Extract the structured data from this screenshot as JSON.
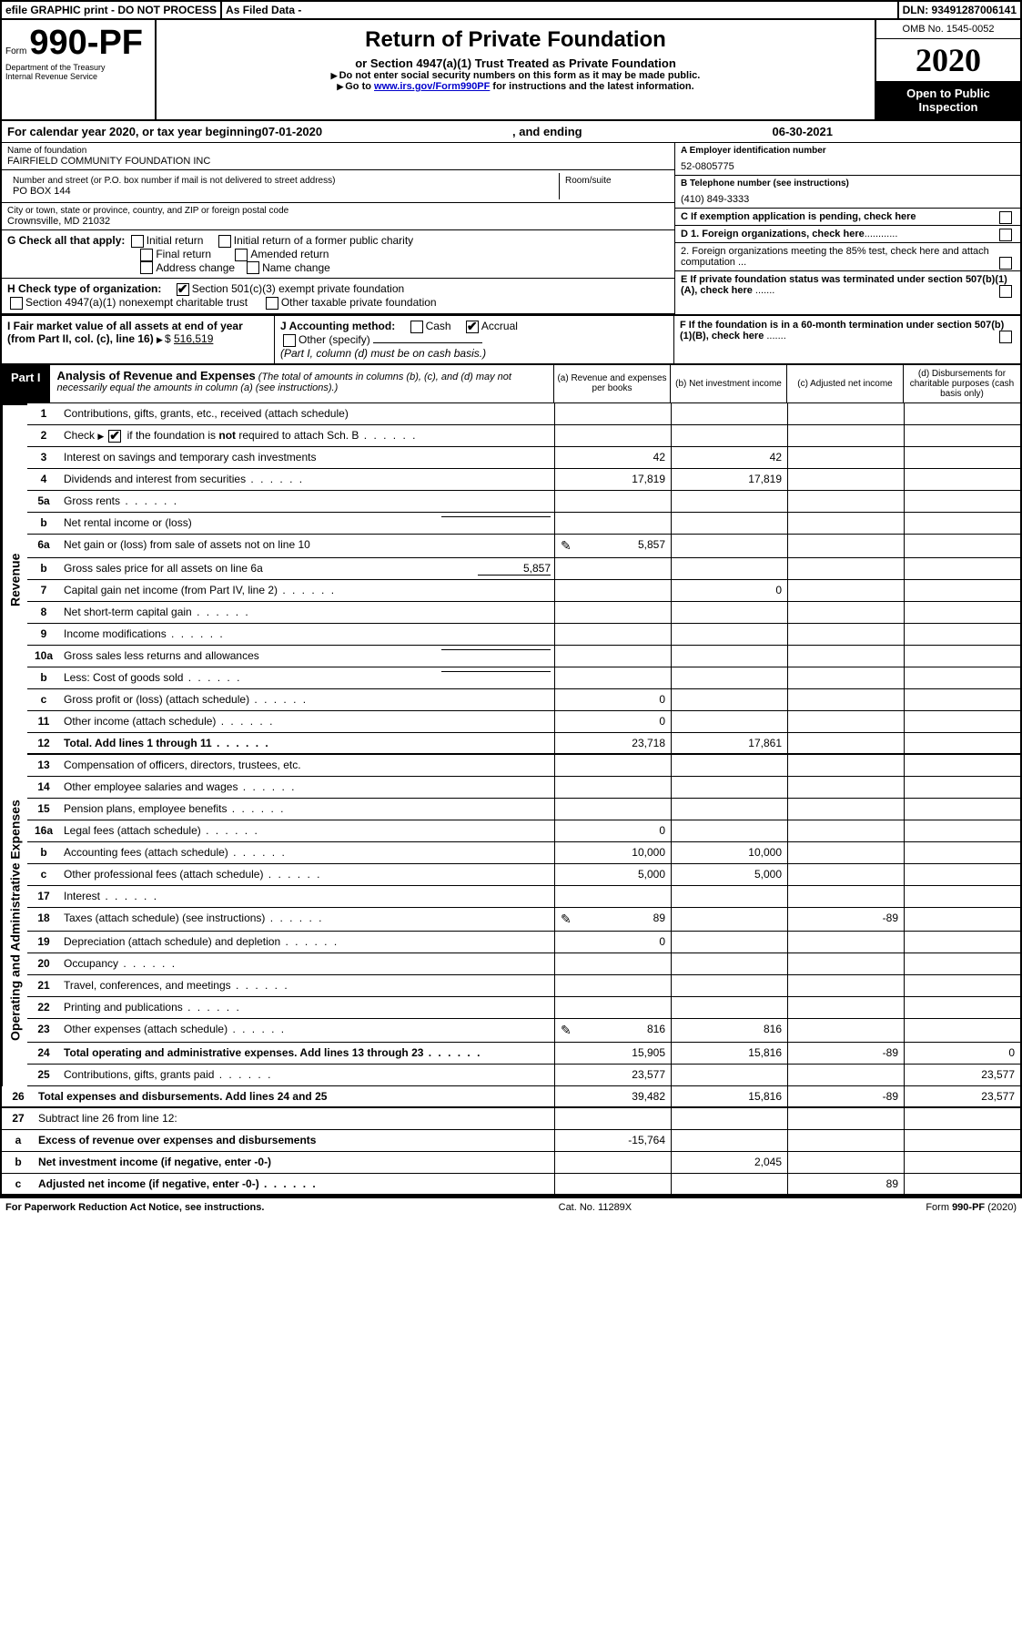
{
  "top_bar": {
    "efile": "efile GRAPHIC print - DO NOT PROCESS",
    "as_filed": "As Filed Data -",
    "dln": "DLN: 93491287006141"
  },
  "header": {
    "form_prefix": "Form",
    "form_number": "990-PF",
    "dept1": "Department of the Treasury",
    "dept2": "Internal Revenue Service",
    "title": "Return of Private Foundation",
    "subtitle": "or Section 4947(a)(1) Trust Treated as Private Foundation",
    "note1": "Do not enter social security numbers on this form as it may be made public.",
    "note2_pre": "Go to ",
    "note2_link": "www.irs.gov/Form990PF",
    "note2_post": " for instructions and the latest information.",
    "omb": "OMB No. 1545-0052",
    "year": "2020",
    "open": "Open to Public Inspection"
  },
  "calyear": {
    "pre": "For calendar year 2020, or tax year beginning ",
    "begin": "07-01-2020",
    "mid": ", and ending ",
    "end": "06-30-2021"
  },
  "entity": {
    "name_label": "Name of foundation",
    "name": "FAIRFIELD COMMUNITY FOUNDATION INC",
    "addr_label": "Number and street (or P.O. box number if mail is not delivered to street address)",
    "addr": "PO BOX 144",
    "room_label": "Room/suite",
    "room": "",
    "city_label": "City or town, state or province, country, and ZIP or foreign postal code",
    "city": "Crownsville, MD  21032",
    "ein_label": "A Employer identification number",
    "ein": "52-0805775",
    "phone_label": "B Telephone number (see instructions)",
    "phone": "(410) 849-3333",
    "c_label": "C If exemption application is pending, check here"
  },
  "g": {
    "label": "G Check all that apply:",
    "opts": [
      "Initial return",
      "Initial return of a former public charity",
      "Final return",
      "Amended return",
      "Address change",
      "Name change"
    ]
  },
  "d": {
    "d1": "D 1. Foreign organizations, check here",
    "d2": "2. Foreign organizations meeting the 85% test, check here and attach computation ...",
    "e": "E If private foundation status was terminated under section 507(b)(1)(A), check here",
    "f": "F If the foundation is in a 60-month termination under section 507(b)(1)(B), check here"
  },
  "h": {
    "label": "H Check type of organization:",
    "opt1": "Section 501(c)(3) exempt private foundation",
    "opt2": "Section 4947(a)(1) nonexempt charitable trust",
    "opt3": "Other taxable private foundation"
  },
  "i": {
    "label": "I Fair market value of all assets at end of year (from Part II, col. (c), line 16)",
    "val_prefix": "$",
    "val": "516,519"
  },
  "j": {
    "label": "J Accounting method:",
    "cash": "Cash",
    "accrual": "Accrual",
    "other": "Other (specify)",
    "note": "(Part I, column (d) must be on cash basis.)"
  },
  "part1": {
    "label": "Part I",
    "title": "Analysis of Revenue and Expenses",
    "title_note": "(The total of amounts in columns (b), (c), and (d) may not necessarily equal the amounts in column (a) (see instructions).)",
    "col_a": "(a) Revenue and expenses per books",
    "col_b": "(b) Net investment income",
    "col_c": "(c) Adjusted net income",
    "col_d": "(d) Disbursements for charitable purposes (cash basis only)"
  },
  "side": {
    "revenue": "Revenue",
    "expenses": "Operating and Administrative Expenses"
  },
  "rows": [
    {
      "n": "1",
      "desc": "Contributions, gifts, grants, etc., received (attach schedule)",
      "a": "",
      "b": "",
      "c": "",
      "d": ""
    },
    {
      "n": "2",
      "desc_pre": "Check ",
      "desc_post": " if the foundation is not required to attach Sch. B",
      "checked": true,
      "dots": true
    },
    {
      "n": "3",
      "desc": "Interest on savings and temporary cash investments",
      "a": "42",
      "b": "42"
    },
    {
      "n": "4",
      "desc": "Dividends and interest from securities",
      "dots": true,
      "a": "17,819",
      "b": "17,819"
    },
    {
      "n": "5a",
      "desc": "Gross rents",
      "dots": true
    },
    {
      "n": "b",
      "desc": "Net rental income or (loss)",
      "inline": true
    },
    {
      "n": "6a",
      "desc": "Net gain or (loss) from sale of assets not on line 10",
      "a": "5,857",
      "icon": true
    },
    {
      "n": "b",
      "desc": "Gross sales price for all assets on line 6a",
      "inline_val": "5,857"
    },
    {
      "n": "7",
      "desc": "Capital gain net income (from Part IV, line 2)",
      "dots": true,
      "b": "0"
    },
    {
      "n": "8",
      "desc": "Net short-term capital gain",
      "dots": true
    },
    {
      "n": "9",
      "desc": "Income modifications",
      "dots": true
    },
    {
      "n": "10a",
      "desc": "Gross sales less returns and allowances",
      "inline": true
    },
    {
      "n": "b",
      "desc": "Less: Cost of goods sold",
      "dots": true,
      "inline": true
    },
    {
      "n": "c",
      "desc": "Gross profit or (loss) (attach schedule)",
      "dots": true,
      "a": "0"
    },
    {
      "n": "11",
      "desc": "Other income (attach schedule)",
      "dots": true,
      "a": "0"
    },
    {
      "n": "12",
      "desc": "Total. Add lines 1 through 11",
      "dots": true,
      "bold": true,
      "a": "23,718",
      "b": "17,861",
      "thick": true
    },
    {
      "n": "13",
      "desc": "Compensation of officers, directors, trustees, etc."
    },
    {
      "n": "14",
      "desc": "Other employee salaries and wages",
      "dots": true
    },
    {
      "n": "15",
      "desc": "Pension plans, employee benefits",
      "dots": true
    },
    {
      "n": "16a",
      "desc": "Legal fees (attach schedule)",
      "dots": true,
      "a": "0"
    },
    {
      "n": "b",
      "desc": "Accounting fees (attach schedule)",
      "dots": true,
      "a": "10,000",
      "b": "10,000"
    },
    {
      "n": "c",
      "desc": "Other professional fees (attach schedule)",
      "dots": true,
      "a": "5,000",
      "b": "5,000"
    },
    {
      "n": "17",
      "desc": "Interest",
      "dots": true
    },
    {
      "n": "18",
      "desc": "Taxes (attach schedule) (see instructions)",
      "dots": true,
      "a": "89",
      "c": "-89",
      "icon": true
    },
    {
      "n": "19",
      "desc": "Depreciation (attach schedule) and depletion",
      "dots": true,
      "a": "0"
    },
    {
      "n": "20",
      "desc": "Occupancy",
      "dots": true
    },
    {
      "n": "21",
      "desc": "Travel, conferences, and meetings",
      "dots": true
    },
    {
      "n": "22",
      "desc": "Printing and publications",
      "dots": true
    },
    {
      "n": "23",
      "desc": "Other expenses (attach schedule)",
      "dots": true,
      "a": "816",
      "b": "816",
      "icon": true
    },
    {
      "n": "24",
      "desc": "Total operating and administrative expenses. Add lines 13 through 23",
      "dots": true,
      "bold": true,
      "a": "15,905",
      "b": "15,816",
      "c": "-89",
      "d": "0"
    },
    {
      "n": "25",
      "desc": "Contributions, gifts, grants paid",
      "dots": true,
      "a": "23,577",
      "d": "23,577"
    },
    {
      "n": "26",
      "desc": "Total expenses and disbursements. Add lines 24 and 25",
      "bold": true,
      "a": "39,482",
      "b": "15,816",
      "c": "-89",
      "d": "23,577",
      "thick": true
    },
    {
      "n": "27",
      "desc": "Subtract line 26 from line 12:"
    },
    {
      "n": "a",
      "desc": "Excess of revenue over expenses and disbursements",
      "bold": true,
      "a": "-15,764"
    },
    {
      "n": "b",
      "desc": "Net investment income (if negative, enter -0-)",
      "bold": true,
      "b": "2,045"
    },
    {
      "n": "c",
      "desc": "Adjusted net income (if negative, enter -0-)",
      "dots": true,
      "bold": true,
      "c": "89",
      "thick": true
    }
  ],
  "footer": {
    "left": "For Paperwork Reduction Act Notice, see instructions.",
    "mid": "Cat. No. 11289X",
    "right": "Form 990-PF (2020)"
  },
  "colors": {
    "black": "#000000",
    "white": "#ffffff",
    "shade": "#e0e0e0",
    "link": "#0000cc"
  }
}
